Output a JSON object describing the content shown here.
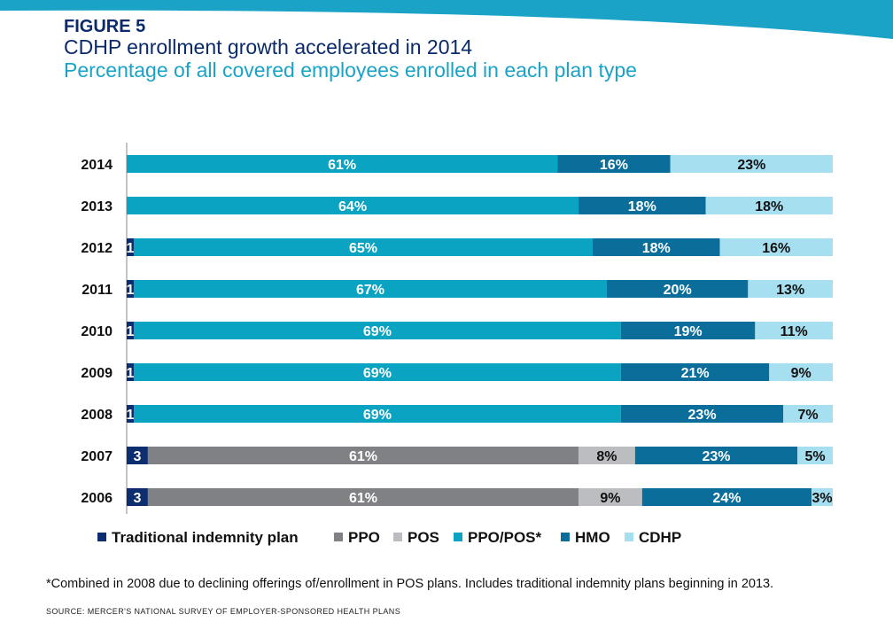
{
  "header": {
    "figure_label": "FIGURE 5",
    "title": "CDHP enrollment growth accelerated in 2014",
    "subtitle": "Percentage of all covered employees enrolled in each plan type"
  },
  "footnote": "*Combined in 2008 due to declining offerings of/enrollment  in POS plans. Includes  traditional indemnity plans beginning in 2013.",
  "source": "SOURCE:  MERCER'S  NATIONAL SURVEY OF EMPLOYER-SPONSORED  HEALTH PLANS",
  "colors": {
    "Traditional indemnity plan": "#0d2e6e",
    "PPO": "#7f8184",
    "POS": "#bcbdc0",
    "PPO/POS*": "#0aa3c2",
    "HMO": "#0b6d99",
    "CDHP": "#a6dff0",
    "band": "#1aa3c7"
  },
  "chart_data": {
    "type": "bar",
    "orientation": "horizontal",
    "stacked": true,
    "categories": [
      "2014",
      "2013",
      "2012",
      "2011",
      "2010",
      "2009",
      "2008",
      "2007",
      "2006"
    ],
    "series": [
      {
        "name": "Traditional indemnity plan",
        "values": [
          0,
          0,
          1,
          1,
          1,
          1,
          1,
          3,
          3
        ],
        "labels": [
          "",
          "",
          "1",
          "1",
          "1",
          "1",
          "1",
          "3",
          "3"
        ]
      },
      {
        "name": "PPO",
        "values": [
          0,
          0,
          0,
          0,
          0,
          0,
          0,
          61,
          61
        ],
        "labels": [
          "",
          "",
          "",
          "",
          "",
          "",
          "",
          "61%",
          "61%"
        ]
      },
      {
        "name": "POS",
        "values": [
          0,
          0,
          0,
          0,
          0,
          0,
          0,
          8,
          9
        ],
        "labels": [
          "",
          "",
          "",
          "",
          "",
          "",
          "",
          "8%",
          "9%"
        ]
      },
      {
        "name": "PPO/POS*",
        "values": [
          61,
          64,
          65,
          67,
          69,
          69,
          69,
          0,
          0
        ],
        "labels": [
          "61%",
          "64%",
          "65%",
          "67%",
          "69%",
          "69%",
          "69%",
          "",
          ""
        ]
      },
      {
        "name": "HMO",
        "values": [
          16,
          18,
          18,
          20,
          19,
          21,
          23,
          23,
          24
        ],
        "labels": [
          "16%",
          "18%",
          "18%",
          "20%",
          "19%",
          "21%",
          "23%",
          "23%",
          "24%"
        ]
      },
      {
        "name": "CDHP",
        "values": [
          23,
          18,
          16,
          13,
          11,
          9,
          7,
          5,
          3
        ],
        "labels": [
          "23%",
          "18%",
          "16%",
          "13%",
          "11%",
          "9%",
          "7%",
          "5%",
          "3%"
        ]
      }
    ],
    "xlim": [
      0,
      100
    ],
    "legend": "bottom"
  }
}
